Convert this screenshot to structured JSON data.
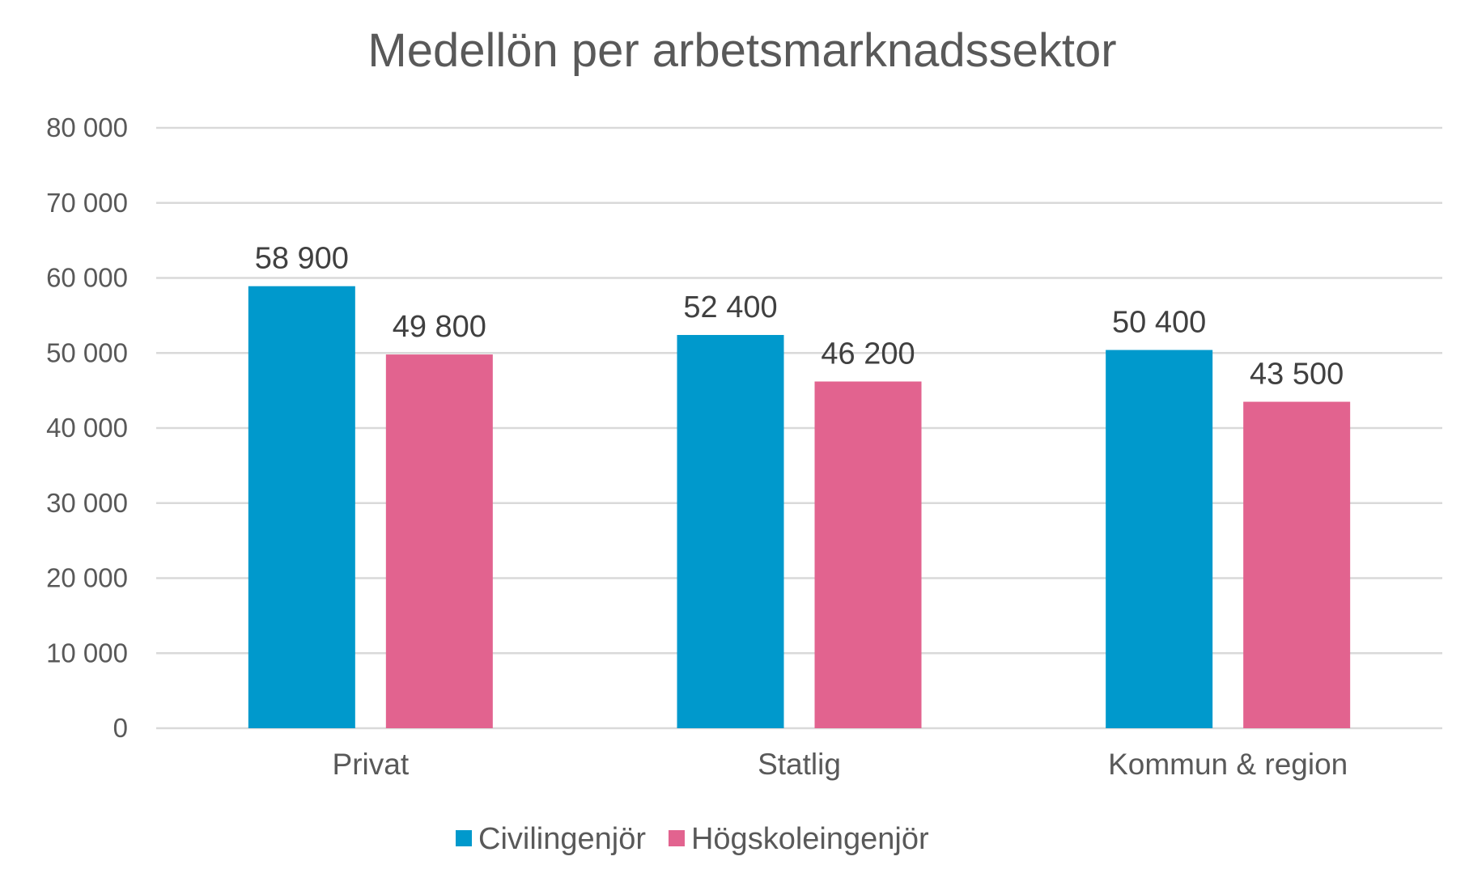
{
  "chart_data": {
    "type": "bar",
    "title": "Medellön per arbetsmarknadssektor",
    "xlabel": "",
    "ylabel": "",
    "categories": [
      "Privat",
      "Statlig",
      "Kommun & region"
    ],
    "series": [
      {
        "name": "Civilingenjör",
        "color": "#0099CC",
        "values": [
          58900,
          52400,
          50400
        ],
        "labels": [
          "58 900",
          "52 400",
          "50 400"
        ]
      },
      {
        "name": "Högskoleingenjör",
        "color": "#E2638F",
        "values": [
          49800,
          46200,
          43500
        ],
        "labels": [
          "49 800",
          "46 200",
          "43 500"
        ]
      }
    ],
    "ylim": [
      0,
      80000
    ],
    "yticks": [
      0,
      10000,
      20000,
      30000,
      40000,
      50000,
      60000,
      70000,
      80000
    ],
    "ytick_labels": [
      "0",
      "10 000",
      "20 000",
      "30 000",
      "40 000",
      "50 000",
      "60 000",
      "70 000",
      "80 000"
    ],
    "grid": true,
    "legend_position": "bottom"
  }
}
